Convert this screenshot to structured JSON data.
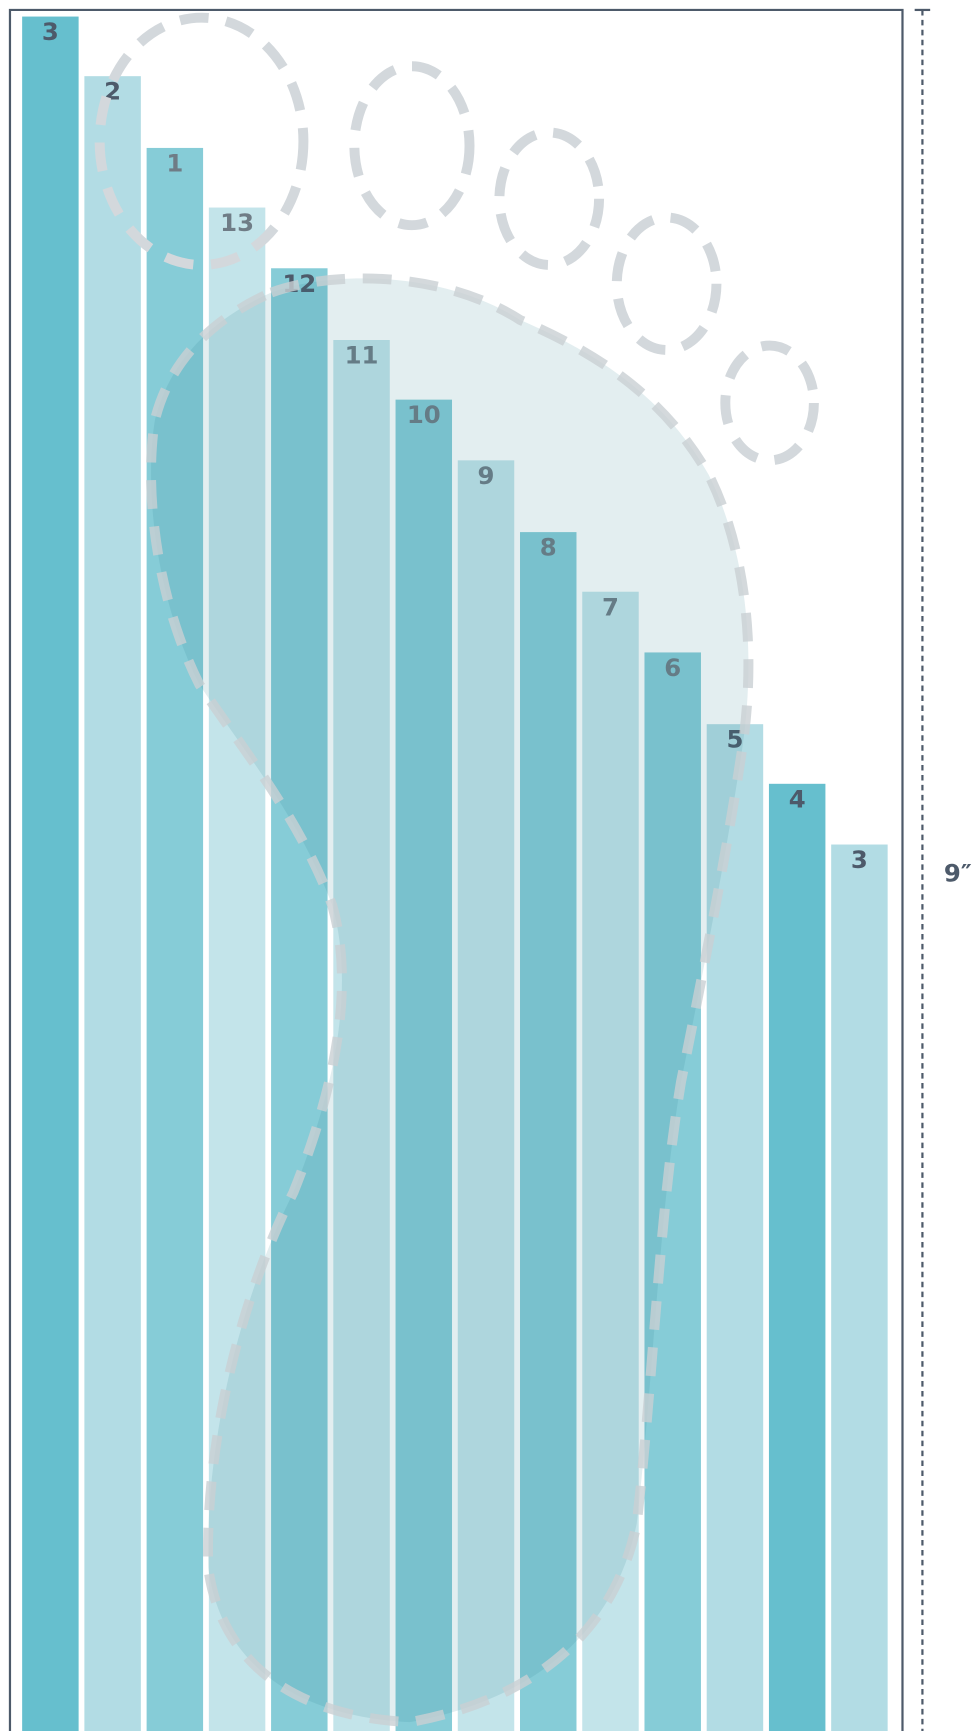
{
  "bars": [
    {
      "label": "3"
    },
    {
      "label": "2"
    },
    {
      "label": "1"
    },
    {
      "label": "13"
    },
    {
      "label": "12"
    },
    {
      "label": "11"
    },
    {
      "label": "10"
    },
    {
      "label": "9"
    },
    {
      "label": "8"
    },
    {
      "label": "7"
    },
    {
      "label": "6"
    },
    {
      "label": "5"
    },
    {
      "label": "4"
    },
    {
      "label": "3"
    }
  ],
  "height_label": "9″"
}
